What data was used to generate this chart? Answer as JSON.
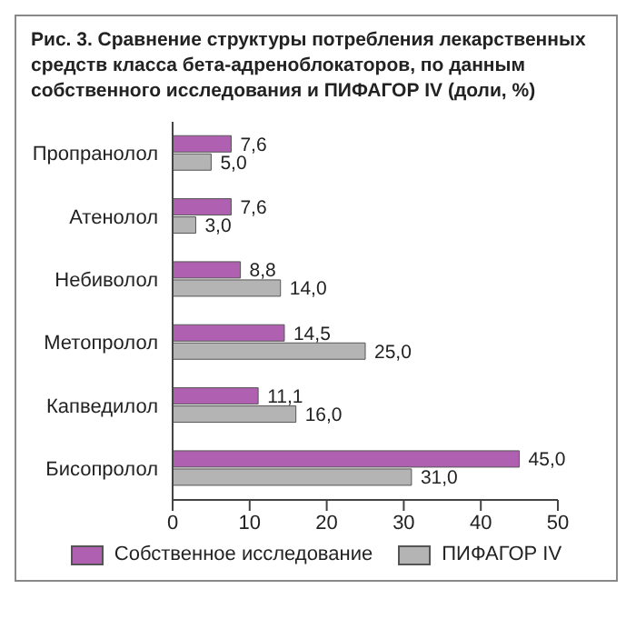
{
  "chart_data": {
    "type": "bar",
    "orientation": "horizontal",
    "title": "Рис. 3. Сравнение структуры потребления лекарственных средств класса бета-адреноблокаторов, по данным собственного исследования и ПИФАГОР IV (доли, %)",
    "categories": [
      "Пропранолол",
      "Атенолол",
      "Небиволол",
      "Метопролол",
      "Капведилол",
      "Бисопролол"
    ],
    "series": [
      {
        "name": "Собственное исследование",
        "color": "#b060b0",
        "values": [
          7.6,
          7.6,
          8.8,
          14.5,
          11.1,
          45.0
        ],
        "value_labels": [
          "7,6",
          "7,6",
          "8,8",
          "14,5",
          "11,1",
          "45,0"
        ]
      },
      {
        "name": "ПИФАГОР IV",
        "color": "#b4b4b4",
        "values": [
          5.0,
          3.0,
          14.0,
          25.0,
          16.0,
          31.0
        ],
        "value_labels": [
          "5,0",
          "3,0",
          "14,0",
          "25,0",
          "16,0",
          "31,0"
        ]
      }
    ],
    "xlim": [
      0,
      50
    ],
    "xticks": [
      0,
      10,
      20,
      30,
      40,
      50
    ],
    "grid": false,
    "legend": "bottom"
  }
}
